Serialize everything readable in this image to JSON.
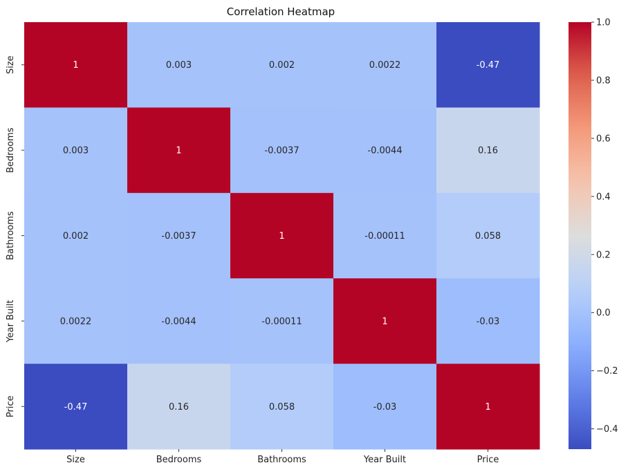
{
  "chart_data": {
    "type": "heatmap",
    "title": "Correlation Heatmap",
    "x_labels": [
      "Size",
      "Bedrooms",
      "Bathrooms",
      "Year Built",
      "Price"
    ],
    "y_labels": [
      "Size",
      "Bedrooms",
      "Bathrooms",
      "Year Built",
      "Price"
    ],
    "values": [
      [
        1,
        0.003,
        0.002,
        0.0022,
        -0.47
      ],
      [
        0.003,
        1,
        -0.0037,
        -0.0044,
        0.16
      ],
      [
        0.002,
        -0.0037,
        1,
        -0.00011,
        0.058
      ],
      [
        0.0022,
        -0.0044,
        -0.00011,
        1,
        -0.03
      ],
      [
        -0.47,
        0.16,
        0.058,
        -0.03,
        1
      ]
    ],
    "cell_labels": [
      [
        "1",
        "0.003",
        "0.002",
        "0.0022",
        "-0.47"
      ],
      [
        "0.003",
        "1",
        "-0.0037",
        "-0.0044",
        "0.16"
      ],
      [
        "0.002",
        "-0.0037",
        "1",
        "-0.00011",
        "0.058"
      ],
      [
        "0.0022",
        "-0.0044",
        "-0.00011",
        "1",
        "-0.03"
      ],
      [
        "-0.47",
        "0.16",
        "0.058",
        "-0.03",
        "1"
      ]
    ],
    "colormap": "coolwarm",
    "color_range": [
      -0.47,
      1
    ],
    "colorbar_ticks": [
      -0.4,
      -0.2,
      0.0,
      0.2,
      0.4,
      0.6,
      0.8,
      1.0
    ],
    "colorbar_tick_labels": [
      "−0.4",
      "−0.2",
      "0.0",
      "0.2",
      "0.4",
      "0.6",
      "0.8",
      "1.0"
    ],
    "legend": "colorbar-right"
  }
}
